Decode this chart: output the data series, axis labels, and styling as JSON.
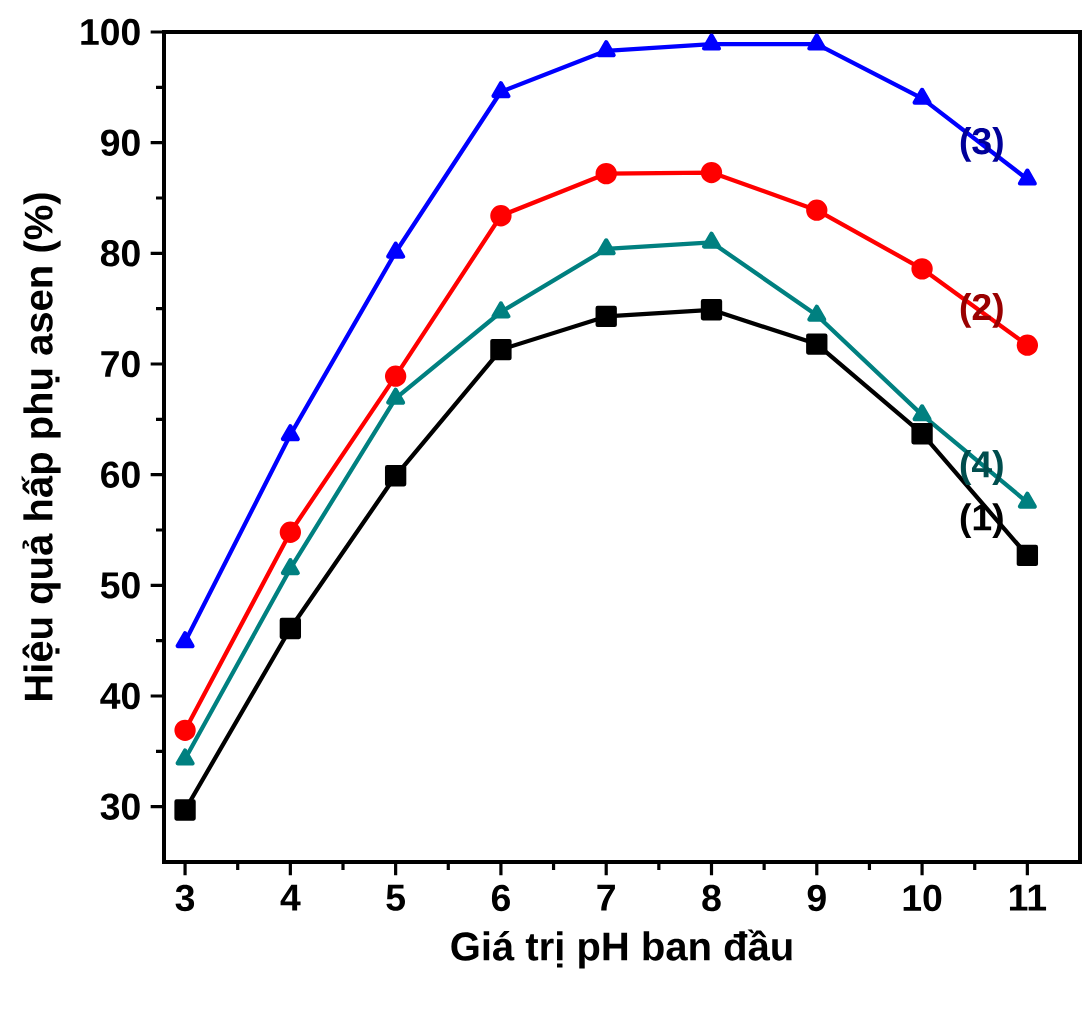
{
  "chart_data": {
    "type": "line",
    "xlabel": "Giá trị pH ban đầu",
    "ylabel": "Hiệu quả hấp phụ asen (%)",
    "x": [
      3,
      4,
      5,
      6,
      7,
      8,
      9,
      10,
      11
    ],
    "series": [
      {
        "name": "(1)",
        "color": "#000000",
        "marker": "square",
        "values": [
          29.7,
          46.1,
          59.9,
          71.3,
          74.3,
          74.9,
          71.8,
          63.7,
          52.7
        ]
      },
      {
        "name": "(2)",
        "color": "#ff0000",
        "marker": "circle",
        "values": [
          36.9,
          54.8,
          68.9,
          83.4,
          87.2,
          87.3,
          83.9,
          78.6,
          71.7
        ]
      },
      {
        "name": "(3)",
        "color": "#0000ff",
        "marker": "triangle",
        "values": [
          44.9,
          63.6,
          80.1,
          94.6,
          98.3,
          98.9,
          98.9,
          94.0,
          86.7
        ]
      },
      {
        "name": "(4)",
        "color": "#008080",
        "marker": "triangle",
        "values": [
          34.3,
          51.5,
          66.9,
          74.7,
          80.4,
          81.0,
          74.4,
          65.4,
          57.5
        ]
      }
    ],
    "xlim": [
      2.8,
      11.5
    ],
    "ylim": [
      25,
      100
    ],
    "xticks": [
      3,
      4,
      5,
      6,
      7,
      8,
      9,
      10,
      11
    ],
    "yticks": [
      30,
      40,
      50,
      60,
      70,
      80,
      90,
      100
    ],
    "grid": false,
    "line_style": "solid"
  }
}
